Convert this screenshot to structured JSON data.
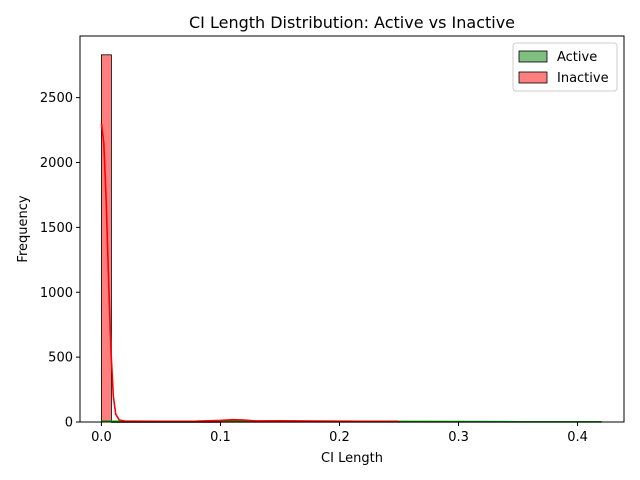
{
  "chart_data": {
    "type": "histogram",
    "title": "CI Length Distribution: Active vs Inactive",
    "xlabel": "CI Length",
    "ylabel": "Frequency",
    "xlim": [
      -0.018,
      0.439
    ],
    "ylim": [
      0,
      2975
    ],
    "xticks": [
      0.0,
      0.1,
      0.2,
      0.3,
      0.4
    ],
    "xtick_labels": [
      "0.0",
      "0.1",
      "0.2",
      "0.3",
      "0.4"
    ],
    "yticks": [
      0,
      500,
      1000,
      1500,
      2000,
      2500
    ],
    "ytick_labels": [
      "0",
      "500",
      "1000",
      "1500",
      "2000",
      "2500"
    ],
    "legend_position": "top-right",
    "series": [
      {
        "name": "Active",
        "fill": "#7fbf7f",
        "line": "#00a000",
        "bins": [
          {
            "x0": 0.0,
            "x1": 0.0084,
            "count": 5
          },
          {
            "x0": 0.0084,
            "x1": 0.1,
            "count": 1
          },
          {
            "x0": 0.1,
            "x1": 0.25,
            "count": 2
          },
          {
            "x0": 0.25,
            "x1": 0.42,
            "count": 2
          }
        ],
        "kde": [
          [
            0.0,
            6
          ],
          [
            0.05,
            3
          ],
          [
            0.1,
            4
          ],
          [
            0.15,
            4
          ],
          [
            0.2,
            4
          ],
          [
            0.25,
            4
          ],
          [
            0.3,
            3
          ],
          [
            0.35,
            2
          ],
          [
            0.42,
            2
          ]
        ]
      },
      {
        "name": "Inactive",
        "fill": "#ff7f7f",
        "line": "#ff0000",
        "bins": [
          {
            "x0": 0.0,
            "x1": 0.0084,
            "count": 2830
          },
          {
            "x0": 0.0084,
            "x1": 0.1,
            "count": 3
          },
          {
            "x0": 0.1,
            "x1": 0.12,
            "count": 8
          },
          {
            "x0": 0.12,
            "x1": 0.25,
            "count": 5
          }
        ],
        "kde": [
          [
            0.0,
            2300
          ],
          [
            0.002,
            2150
          ],
          [
            0.004,
            1700
          ],
          [
            0.006,
            1100
          ],
          [
            0.008,
            550
          ],
          [
            0.01,
            200
          ],
          [
            0.012,
            60
          ],
          [
            0.015,
            15
          ],
          [
            0.02,
            6
          ],
          [
            0.05,
            5
          ],
          [
            0.08,
            6
          ],
          [
            0.1,
            12
          ],
          [
            0.11,
            18
          ],
          [
            0.12,
            15
          ],
          [
            0.13,
            8
          ],
          [
            0.15,
            9
          ],
          [
            0.18,
            7
          ],
          [
            0.22,
            5
          ],
          [
            0.25,
            5
          ]
        ]
      }
    ]
  }
}
